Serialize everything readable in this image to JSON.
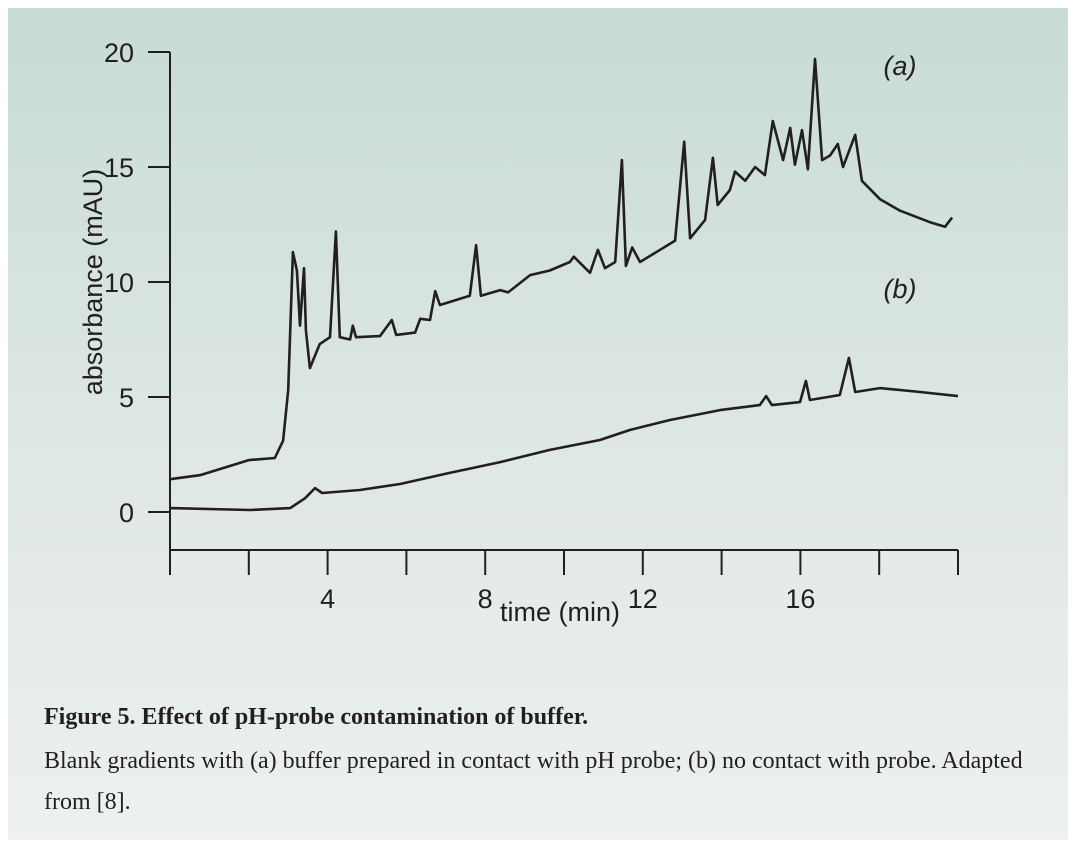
{
  "chart_data": {
    "type": "line",
    "xlabel": "time (min)",
    "ylabel": "absorbance (mAU)",
    "xlim": [
      0,
      20
    ],
    "xticks": [
      4,
      8,
      12,
      16
    ],
    "xminor_ticks": [
      0,
      2,
      6,
      10,
      14,
      18,
      20
    ],
    "ylim": [
      -1.65,
      20
    ],
    "yticks": [
      0,
      5,
      10,
      15,
      20
    ],
    "series": [
      {
        "name": "(a)",
        "color": "#231f20",
        "x": [
          0,
          0.76,
          2,
          2.66,
          2.87,
          3.0,
          3.12,
          3.22,
          3.3,
          3.4,
          3.45,
          3.55,
          3.8,
          4.06,
          4.21,
          4.31,
          4.57,
          4.64,
          4.72,
          5.33,
          5.63,
          5.74,
          6.22,
          6.35,
          6.6,
          6.73,
          6.85,
          7.23,
          7.61,
          7.77,
          7.89,
          8.38,
          8.58,
          9.14,
          9.64,
          10.15,
          10.25,
          10.66,
          10.86,
          11.04,
          11.3,
          11.47,
          11.57,
          11.73,
          11.93,
          12.44,
          12.82,
          13.05,
          13.2,
          13.58,
          13.78,
          13.9,
          14.21,
          14.34,
          14.6,
          14.85,
          15.1,
          15.3,
          15.56,
          15.74,
          15.86,
          16.04,
          16.19,
          16.37,
          16.55,
          16.75,
          16.95,
          17.08,
          17.39,
          17.56,
          18.02,
          18.53,
          19.29,
          19.67,
          19.85
        ],
        "values": [
          1.43,
          1.6,
          2.26,
          2.35,
          3.1,
          5.3,
          11.3,
          10.5,
          8.1,
          10.6,
          7.9,
          6.26,
          7.3,
          7.6,
          12.2,
          7.6,
          7.5,
          8.1,
          7.6,
          7.65,
          8.35,
          7.7,
          7.8,
          8.4,
          8.35,
          9.6,
          9.0,
          9.2,
          9.4,
          11.6,
          9.4,
          9.65,
          9.55,
          10.3,
          10.5,
          10.87,
          11.1,
          10.4,
          11.4,
          10.6,
          10.87,
          15.3,
          10.7,
          11.5,
          10.87,
          11.4,
          11.8,
          16.1,
          11.9,
          12.7,
          15.4,
          13.35,
          14.0,
          14.8,
          14.4,
          15.0,
          14.65,
          17.0,
          15.3,
          16.7,
          15.1,
          16.6,
          14.9,
          19.7,
          15.3,
          15.5,
          16.0,
          15.0,
          16.4,
          14.4,
          13.6,
          13.1,
          12.6,
          12.4,
          12.8
        ]
      },
      {
        "name": "(b)",
        "color": "#231f20",
        "x": [
          0,
          2.03,
          3.05,
          3.43,
          3.68,
          3.86,
          4.82,
          5.84,
          7.1,
          8.38,
          9.64,
          10.91,
          11.68,
          12.69,
          13.96,
          14.97,
          15.13,
          15.28,
          15.99,
          16.14,
          16.24,
          17.0,
          17.23,
          17.39,
          18.02,
          19.04,
          20
        ],
        "values": [
          0.17,
          0.09,
          0.17,
          0.6,
          1.04,
          0.83,
          0.96,
          1.22,
          1.7,
          2.17,
          2.7,
          3.13,
          3.57,
          4.0,
          4.43,
          4.65,
          5.04,
          4.65,
          4.78,
          5.7,
          4.87,
          5.09,
          6.7,
          5.22,
          5.39,
          5.22,
          5.04
        ]
      }
    ]
  },
  "caption": {
    "title": "Figure 5. Effect of pH-probe contamination of buffer.",
    "text": "Blank gradients with (a) buffer prepared in contact with pH probe; (b) no contact with probe. Adapted from [8]."
  }
}
